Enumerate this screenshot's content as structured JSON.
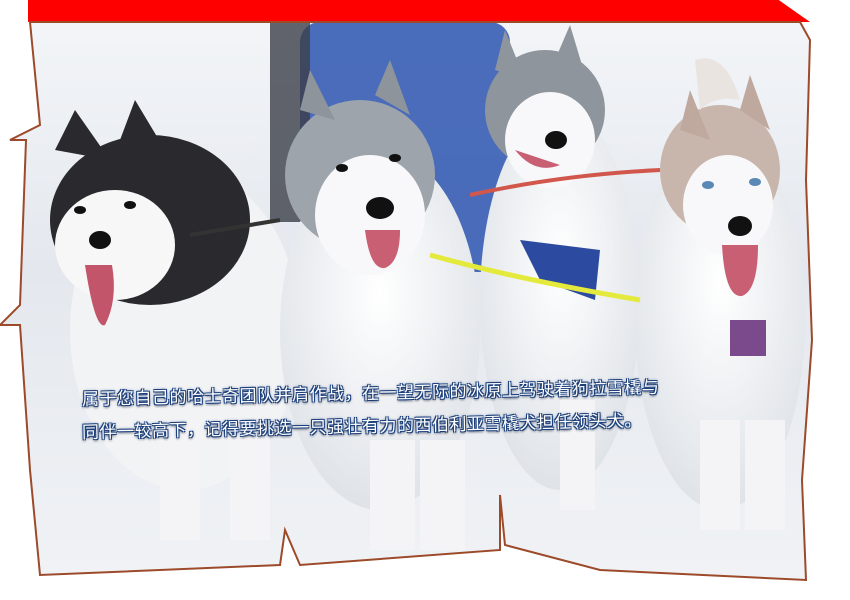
{
  "photo": {
    "subject": "husky-sled-dogs",
    "colors": {
      "banner": "#ff0000",
      "frame_border": "#9c4a2a",
      "snow": "#e9edf3",
      "caption_outline": "#1c3f7a"
    }
  },
  "caption": {
    "line1": "属于您自己的哈士奇团队并肩作战，在一望无际的冰原上驾驶着狗拉雪橇与",
    "line2": "同伴一较高下，记得要挑选一只强壮有力的西伯利亚雪橇犬担任领头犬。"
  }
}
